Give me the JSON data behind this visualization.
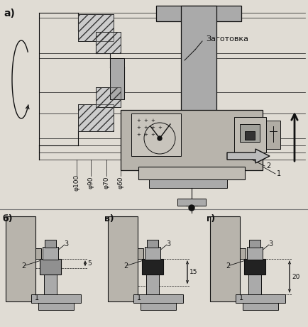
{
  "bg": "#e0dcd4",
  "black": "#111111",
  "dark_gray": "#333333",
  "med_gray": "#777777",
  "light_gray": "#aaaaaa",
  "very_light_gray": "#cccccc",
  "hatch_dark": "#555555",
  "label_a": "a)",
  "label_b": "б)",
  "label_v": "в)",
  "label_g": "г)",
  "zagotovka": "Заготовка",
  "diameters": [
    "φ100",
    "φ90",
    "φ70",
    "φ60"
  ],
  "dim_b": "5",
  "dim_v": "15",
  "dim_g": "20",
  "num1": "1",
  "num2": "2",
  "num3": "3"
}
